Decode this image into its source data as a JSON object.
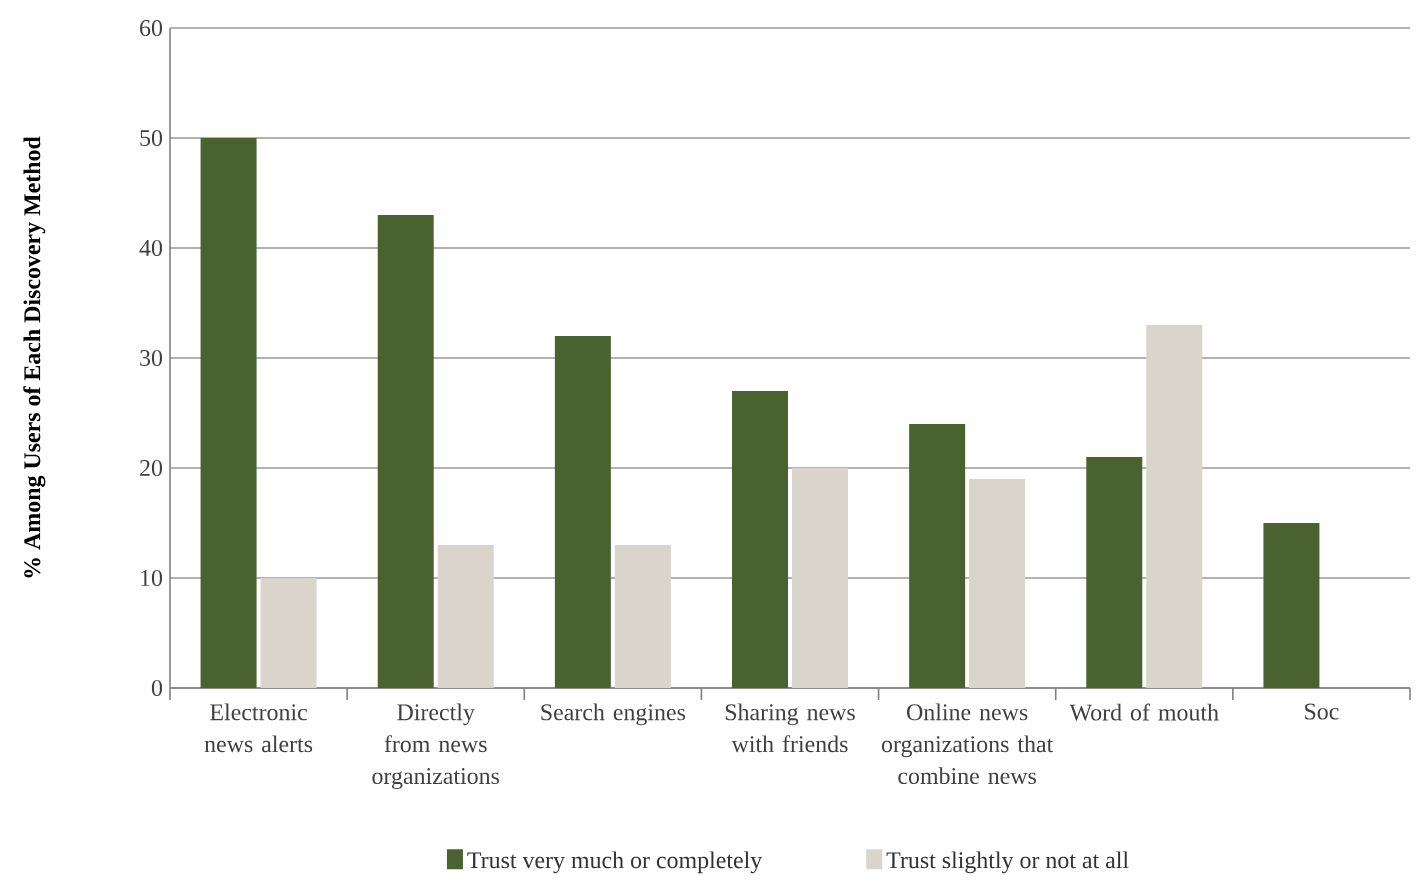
{
  "chart_data": {
    "type": "bar",
    "ylabel": "% Among Users of Each Discovery Method",
    "categories": [
      "Electronic news alerts",
      "Directly from news organizations",
      "Search engines",
      "Sharing news with friends",
      "Online news organizations that combine news",
      "Word of mouth",
      "Soc"
    ],
    "series": [
      {
        "name": "Trust very much or completely",
        "color": "#4a6130",
        "values": [
          50,
          43,
          32,
          27,
          24,
          21,
          15
        ]
      },
      {
        "name": "Trust slightly or not at all",
        "color": "#d9d5cc",
        "values": [
          10,
          13,
          13,
          20,
          19,
          33,
          null
        ]
      }
    ],
    "ylim": [
      0,
      60
    ],
    "yticks": [
      0,
      10,
      20,
      30,
      40,
      50,
      60
    ],
    "grid": "y",
    "legend": "bottom"
  }
}
